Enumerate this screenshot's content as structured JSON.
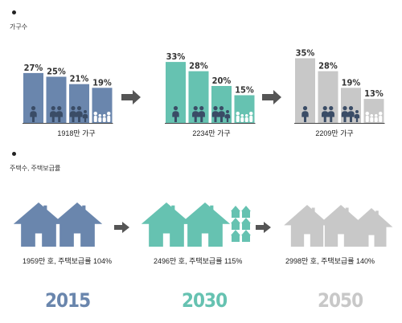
{
  "sections": {
    "households_title": "가구수",
    "housing_title": "주택수, 주택보급률"
  },
  "colors": {
    "y2015": "#6A86AD",
    "y2030": "#66C2B1",
    "y2050": "#C8C8C8",
    "arrow": "#555555",
    "figure": "#3A4C66"
  },
  "chart_data": [
    {
      "type": "bar",
      "title": "가구수",
      "panels": [
        {
          "year": "2015",
          "total_label": "1918만 가구",
          "categories": [
            "1인",
            "2인",
            "3인",
            "4인 이상"
          ],
          "values": [
            27,
            25,
            21,
            19
          ],
          "labels": [
            "27%",
            "25%",
            "21%",
            "19%"
          ]
        },
        {
          "year": "2030",
          "total_label": "2234만 가구",
          "categories": [
            "1인",
            "2인",
            "3인",
            "4인 이상"
          ],
          "values": [
            33,
            28,
            20,
            15
          ],
          "labels": [
            "33%",
            "28%",
            "20%",
            "15%"
          ]
        },
        {
          "year": "2050",
          "total_label": "2209만 가구",
          "categories": [
            "1인",
            "2인",
            "3인",
            "4인 이상"
          ],
          "values": [
            35,
            28,
            19,
            13
          ],
          "labels": [
            "35%",
            "28%",
            "19%",
            "13%"
          ]
        }
      ]
    },
    {
      "type": "pictogram",
      "title": "주택수, 주택보급률",
      "panels": [
        {
          "year": "2015",
          "caption": "1959만 호, 주택보급률 104%",
          "homes_10k": 1959,
          "supply_rate": 104
        },
        {
          "year": "2030",
          "caption": "2496만 호, 주택보급률 115%",
          "homes_10k": 2496,
          "supply_rate": 115
        },
        {
          "year": "2050",
          "caption": "2998만 호, 주택보급률 140%",
          "homes_10k": 2998,
          "supply_rate": 140
        }
      ]
    }
  ],
  "years": [
    "2015",
    "2030",
    "2050"
  ]
}
